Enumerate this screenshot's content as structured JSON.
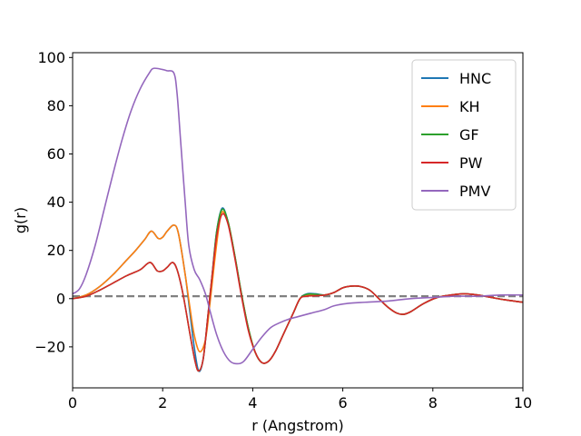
{
  "chart_data": {
    "type": "line",
    "title": "",
    "xlabel": "r (Angstrom)",
    "ylabel": "g(r)",
    "xlim": [
      0,
      10
    ],
    "ylim": [
      -37,
      102
    ],
    "xticks": [
      0,
      2,
      4,
      6,
      8,
      10
    ],
    "xtick_labels": [
      "0",
      "2",
      "4",
      "6",
      "8",
      "10"
    ],
    "yticks": [
      -20,
      0,
      20,
      40,
      60,
      80,
      100
    ],
    "ytick_labels": [
      "−20",
      "0",
      "20",
      "40",
      "60",
      "80",
      "100"
    ],
    "grid": false,
    "legend_position": "top-right",
    "reference_line": {
      "y": 1,
      "color": "#808080",
      "style": "dashed"
    },
    "series": [
      {
        "name": "HNC",
        "color": "#1f77b4",
        "points": [
          [
            0,
            0
          ],
          [
            0.3,
            1.5
          ],
          [
            0.6,
            5
          ],
          [
            0.9,
            10
          ],
          [
            1.2,
            16
          ],
          [
            1.4,
            20
          ],
          [
            1.6,
            24.5
          ],
          [
            1.75,
            28
          ],
          [
            1.9,
            25
          ],
          [
            2.0,
            25.5
          ],
          [
            2.1,
            28
          ],
          [
            2.25,
            30.5
          ],
          [
            2.35,
            27
          ],
          [
            2.5,
            10
          ],
          [
            2.6,
            -5
          ],
          [
            2.7,
            -20
          ],
          [
            2.8,
            -30
          ],
          [
            2.9,
            -25
          ],
          [
            3.0,
            -8
          ],
          [
            3.1,
            10
          ],
          [
            3.2,
            28
          ],
          [
            3.32,
            37.5
          ],
          [
            3.45,
            32
          ],
          [
            3.6,
            18
          ],
          [
            3.75,
            2
          ],
          [
            3.9,
            -12
          ],
          [
            4.05,
            -22
          ],
          [
            4.2,
            -26.5
          ],
          [
            4.35,
            -26
          ],
          [
            4.5,
            -22
          ],
          [
            4.7,
            -14
          ],
          [
            4.9,
            -6
          ],
          [
            5.05,
            0
          ],
          [
            5.2,
            2
          ],
          [
            5.4,
            2
          ],
          [
            5.6,
            1.5
          ],
          [
            5.8,
            2.5
          ],
          [
            6.0,
            4.5
          ],
          [
            6.2,
            5.2
          ],
          [
            6.4,
            5
          ],
          [
            6.6,
            3.5
          ],
          [
            6.8,
            0
          ],
          [
            7.0,
            -3.5
          ],
          [
            7.2,
            -6
          ],
          [
            7.35,
            -6.5
          ],
          [
            7.5,
            -5.5
          ],
          [
            7.8,
            -2
          ],
          [
            8.1,
            0.5
          ],
          [
            8.4,
            1.5
          ],
          [
            8.7,
            2
          ],
          [
            9.0,
            1.5
          ],
          [
            9.3,
            0.5
          ],
          [
            9.6,
            -0.5
          ],
          [
            10,
            -1.5
          ]
        ]
      },
      {
        "name": "KH",
        "color": "#ff7f0e",
        "points": [
          [
            0,
            0
          ],
          [
            0.3,
            1.5
          ],
          [
            0.6,
            5
          ],
          [
            0.9,
            10
          ],
          [
            1.2,
            16
          ],
          [
            1.4,
            20
          ],
          [
            1.6,
            24.5
          ],
          [
            1.75,
            28
          ],
          [
            1.9,
            25
          ],
          [
            2.0,
            25.5
          ],
          [
            2.1,
            28
          ],
          [
            2.25,
            30.5
          ],
          [
            2.35,
            27
          ],
          [
            2.5,
            10
          ],
          [
            2.6,
            -3
          ],
          [
            2.7,
            -15
          ],
          [
            2.82,
            -22
          ],
          [
            2.95,
            -17
          ],
          [
            3.05,
            -2
          ],
          [
            3.15,
            15
          ],
          [
            3.25,
            30
          ],
          [
            3.32,
            36
          ],
          [
            3.45,
            32
          ],
          [
            3.6,
            18
          ],
          [
            3.75,
            2
          ],
          [
            3.9,
            -12
          ],
          [
            4.05,
            -22
          ],
          [
            4.2,
            -26.5
          ],
          [
            4.35,
            -26
          ],
          [
            4.5,
            -22
          ],
          [
            4.7,
            -14
          ],
          [
            4.9,
            -6
          ],
          [
            5.05,
            0
          ],
          [
            5.2,
            1.5
          ],
          [
            5.4,
            1.5
          ],
          [
            5.6,
            1.5
          ],
          [
            5.8,
            2.5
          ],
          [
            6.0,
            4.5
          ],
          [
            6.2,
            5.2
          ],
          [
            6.4,
            5
          ],
          [
            6.6,
            3.5
          ],
          [
            6.8,
            0
          ],
          [
            7.0,
            -3.5
          ],
          [
            7.2,
            -6
          ],
          [
            7.35,
            -6.5
          ],
          [
            7.5,
            -5.5
          ],
          [
            7.8,
            -2
          ],
          [
            8.1,
            0.5
          ],
          [
            8.4,
            1.5
          ],
          [
            8.7,
            2
          ],
          [
            9.0,
            1.5
          ],
          [
            9.3,
            0.5
          ],
          [
            9.6,
            -0.5
          ],
          [
            10,
            -1.5
          ]
        ]
      },
      {
        "name": "GF",
        "color": "#2ca02c",
        "points": [
          [
            0,
            0
          ],
          [
            0.3,
            1
          ],
          [
            0.6,
            3.5
          ],
          [
            0.9,
            6.5
          ],
          [
            1.2,
            9.5
          ],
          [
            1.5,
            12
          ],
          [
            1.72,
            15
          ],
          [
            1.88,
            11.5
          ],
          [
            2.0,
            11.5
          ],
          [
            2.1,
            13
          ],
          [
            2.22,
            15
          ],
          [
            2.32,
            12
          ],
          [
            2.45,
            2
          ],
          [
            2.6,
            -14
          ],
          [
            2.72,
            -26
          ],
          [
            2.8,
            -30
          ],
          [
            2.9,
            -25
          ],
          [
            3.0,
            -8
          ],
          [
            3.1,
            10
          ],
          [
            3.2,
            28
          ],
          [
            3.32,
            37
          ],
          [
            3.45,
            32
          ],
          [
            3.6,
            18
          ],
          [
            3.75,
            2
          ],
          [
            3.9,
            -12
          ],
          [
            4.05,
            -22
          ],
          [
            4.2,
            -26.5
          ],
          [
            4.35,
            -26
          ],
          [
            4.5,
            -22
          ],
          [
            4.7,
            -14
          ],
          [
            4.9,
            -6
          ],
          [
            5.05,
            0
          ],
          [
            5.2,
            1.8
          ],
          [
            5.4,
            1.8
          ],
          [
            5.6,
            1.5
          ],
          [
            5.8,
            2.5
          ],
          [
            6.0,
            4.5
          ],
          [
            6.2,
            5.2
          ],
          [
            6.4,
            5
          ],
          [
            6.6,
            3.5
          ],
          [
            6.8,
            0
          ],
          [
            7.0,
            -3.5
          ],
          [
            7.2,
            -6
          ],
          [
            7.35,
            -6.5
          ],
          [
            7.5,
            -5.5
          ],
          [
            7.8,
            -2
          ],
          [
            8.1,
            0.5
          ],
          [
            8.4,
            1.5
          ],
          [
            8.7,
            2
          ],
          [
            9.0,
            1.5
          ],
          [
            9.3,
            0.5
          ],
          [
            9.6,
            -0.5
          ],
          [
            10,
            -1.5
          ]
        ]
      },
      {
        "name": "PW",
        "color": "#d62728",
        "points": [
          [
            0,
            0
          ],
          [
            0.3,
            1
          ],
          [
            0.6,
            3.5
          ],
          [
            0.9,
            6.5
          ],
          [
            1.2,
            9.5
          ],
          [
            1.5,
            12
          ],
          [
            1.72,
            15
          ],
          [
            1.88,
            11.5
          ],
          [
            2.0,
            11.5
          ],
          [
            2.1,
            13
          ],
          [
            2.22,
            15
          ],
          [
            2.32,
            12
          ],
          [
            2.45,
            2
          ],
          [
            2.6,
            -14
          ],
          [
            2.72,
            -26
          ],
          [
            2.8,
            -30
          ],
          [
            2.9,
            -25
          ],
          [
            3.0,
            -8
          ],
          [
            3.1,
            10
          ],
          [
            3.2,
            26
          ],
          [
            3.32,
            35
          ],
          [
            3.45,
            31
          ],
          [
            3.6,
            17
          ],
          [
            3.75,
            1
          ],
          [
            3.9,
            -13
          ],
          [
            4.05,
            -22
          ],
          [
            4.2,
            -26.5
          ],
          [
            4.35,
            -26
          ],
          [
            4.5,
            -22
          ],
          [
            4.7,
            -14
          ],
          [
            4.9,
            -6
          ],
          [
            5.05,
            0
          ],
          [
            5.2,
            1
          ],
          [
            5.4,
            1.2
          ],
          [
            5.6,
            1.5
          ],
          [
            5.8,
            2.5
          ],
          [
            6.0,
            4.5
          ],
          [
            6.2,
            5.2
          ],
          [
            6.4,
            5
          ],
          [
            6.6,
            3.5
          ],
          [
            6.8,
            0
          ],
          [
            7.0,
            -3.5
          ],
          [
            7.2,
            -6
          ],
          [
            7.35,
            -6.5
          ],
          [
            7.5,
            -5.5
          ],
          [
            7.8,
            -2
          ],
          [
            8.1,
            0.5
          ],
          [
            8.4,
            1.5
          ],
          [
            8.7,
            2
          ],
          [
            9.0,
            1.5
          ],
          [
            9.3,
            0.5
          ],
          [
            9.6,
            -0.5
          ],
          [
            10,
            -1.5
          ]
        ]
      },
      {
        "name": "PMV",
        "color": "#9467bd",
        "points": [
          [
            0,
            2
          ],
          [
            0.15,
            4
          ],
          [
            0.3,
            10
          ],
          [
            0.5,
            22
          ],
          [
            0.7,
            37
          ],
          [
            0.9,
            52
          ],
          [
            1.1,
            66
          ],
          [
            1.3,
            78
          ],
          [
            1.5,
            87
          ],
          [
            1.7,
            93.5
          ],
          [
            1.8,
            95.5
          ],
          [
            2.0,
            95
          ],
          [
            2.1,
            94.5
          ],
          [
            2.25,
            93.5
          ],
          [
            2.32,
            85
          ],
          [
            2.4,
            65
          ],
          [
            2.5,
            40
          ],
          [
            2.58,
            22
          ],
          [
            2.7,
            12
          ],
          [
            2.82,
            8
          ],
          [
            2.95,
            2
          ],
          [
            3.05,
            -5
          ],
          [
            3.2,
            -15
          ],
          [
            3.35,
            -22
          ],
          [
            3.5,
            -26
          ],
          [
            3.65,
            -27
          ],
          [
            3.8,
            -26
          ],
          [
            4.0,
            -21
          ],
          [
            4.2,
            -16
          ],
          [
            4.4,
            -12
          ],
          [
            4.6,
            -10
          ],
          [
            4.8,
            -8.5
          ],
          [
            5.0,
            -7.5
          ],
          [
            5.3,
            -6
          ],
          [
            5.6,
            -4.5
          ],
          [
            5.8,
            -3
          ],
          [
            6.1,
            -2
          ],
          [
            6.5,
            -1.5
          ],
          [
            7.0,
            -1
          ],
          [
            7.5,
            0
          ],
          [
            8.0,
            0.5
          ],
          [
            8.5,
            1
          ],
          [
            9.0,
            1
          ],
          [
            9.5,
            1.5
          ],
          [
            10,
            1.5
          ]
        ]
      }
    ]
  }
}
